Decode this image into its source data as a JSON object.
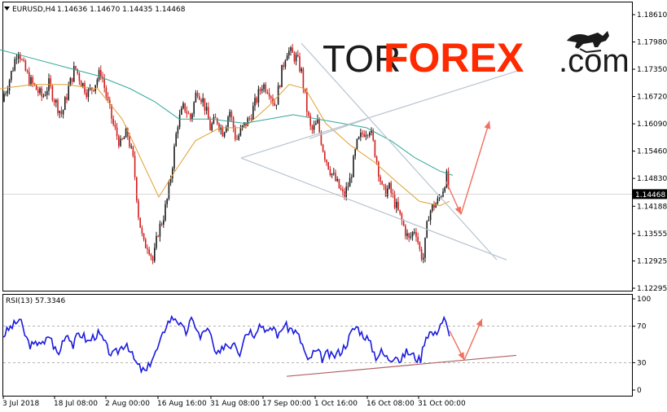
{
  "chart_data": {
    "type": "candlestick",
    "main": {
      "symbol_label": "EURUSD,H4",
      "ohlc_label": [
        "1.14636",
        "1.14670",
        "1.14435",
        "1.14468"
      ],
      "last_price": "1.14468",
      "y_ticks": [
        "1.18610",
        "1.17980",
        "1.17350",
        "1.16720",
        "1.16090",
        "1.15460",
        "1.14830",
        "1.14188",
        "1.13555",
        "1.12925",
        "1.12295"
      ],
      "ylim": [
        1.12295,
        1.1861
      ],
      "x_ticks": [
        "3 Jul 2018",
        "18 Jul 08:00",
        "2 Aug 00:00",
        "16 Aug 16:00",
        "31 Aug 08:00",
        "17 Sep 00:00",
        "1 Oct 16:00",
        "16 Oct 08:00",
        "31 Oct 00:00"
      ],
      "price_path": [
        [
          0,
          1.166
        ],
        [
          8,
          1.169
        ],
        [
          16,
          1.174
        ],
        [
          22,
          1.1785
        ],
        [
          28,
          1.1745
        ],
        [
          36,
          1.171
        ],
        [
          44,
          1.169
        ],
        [
          52,
          1.167
        ],
        [
          60,
          1.17
        ],
        [
          68,
          1.166
        ],
        [
          76,
          1.163
        ],
        [
          84,
          1.169
        ],
        [
          92,
          1.174
        ],
        [
          100,
          1.1705
        ],
        [
          108,
          1.168
        ],
        [
          116,
          1.17
        ],
        [
          124,
          1.173
        ],
        [
          132,
          1.166
        ],
        [
          140,
          1.16
        ],
        [
          148,
          1.156
        ],
        [
          156,
          1.159
        ],
        [
          164,
          1.152
        ],
        [
          170,
          1.14
        ],
        [
          176,
          1.133
        ],
        [
          182,
          1.133
        ],
        [
          188,
          1.129
        ],
        [
          194,
          1.136
        ],
        [
          200,
          1.139
        ],
        [
          206,
          1.144
        ],
        [
          212,
          1.152
        ],
        [
          218,
          1.161
        ],
        [
          226,
          1.165
        ],
        [
          234,
          1.162
        ],
        [
          242,
          1.169
        ],
        [
          250,
          1.166
        ],
        [
          258,
          1.16
        ],
        [
          266,
          1.162
        ],
        [
          274,
          1.159
        ],
        [
          282,
          1.164
        ],
        [
          290,
          1.157
        ],
        [
          298,
          1.16
        ],
        [
          306,
          1.162
        ],
        [
          314,
          1.166
        ],
        [
          322,
          1.17
        ],
        [
          330,
          1.169
        ],
        [
          338,
          1.165
        ],
        [
          346,
          1.173
        ],
        [
          352,
          1.178
        ],
        [
          358,
          1.177
        ],
        [
          364,
          1.176
        ],
        [
          370,
          1.173
        ],
        [
          376,
          1.165
        ],
        [
          382,
          1.159
        ],
        [
          390,
          1.161
        ],
        [
          398,
          1.154
        ],
        [
          406,
          1.15
        ],
        [
          414,
          1.147
        ],
        [
          422,
          1.144
        ],
        [
          430,
          1.148
        ],
        [
          438,
          1.156
        ],
        [
          446,
          1.159
        ],
        [
          454,
          1.16
        ],
        [
          462,
          1.153
        ],
        [
          470,
          1.145
        ],
        [
          478,
          1.146
        ],
        [
          486,
          1.142
        ],
        [
          494,
          1.138
        ],
        [
          502,
          1.134
        ],
        [
          510,
          1.137
        ],
        [
          516,
          1.131
        ],
        [
          520,
          1.13
        ],
        [
          526,
          1.14
        ],
        [
          532,
          1.142
        ],
        [
          538,
          1.143
        ],
        [
          544,
          1.146
        ],
        [
          548,
          1.149
        ],
        [
          552,
          1.1447
        ]
      ],
      "ma_orange": [
        [
          0,
          1.169
        ],
        [
          40,
          1.17
        ],
        [
          80,
          1.17
        ],
        [
          120,
          1.169
        ],
        [
          150,
          1.162
        ],
        [
          175,
          1.152
        ],
        [
          195,
          1.144
        ],
        [
          215,
          1.15
        ],
        [
          240,
          1.157
        ],
        [
          270,
          1.16
        ],
        [
          300,
          1.16
        ],
        [
          330,
          1.165
        ],
        [
          355,
          1.17
        ],
        [
          375,
          1.169
        ],
        [
          400,
          1.161
        ],
        [
          430,
          1.156
        ],
        [
          460,
          1.152
        ],
        [
          490,
          1.147
        ],
        [
          515,
          1.143
        ],
        [
          540,
          1.142
        ],
        [
          552,
          1.143
        ]
      ],
      "ma_teal": [
        [
          0,
          1.178
        ],
        [
          40,
          1.176
        ],
        [
          80,
          1.174
        ],
        [
          120,
          1.172
        ],
        [
          160,
          1.169
        ],
        [
          190,
          1.166
        ],
        [
          220,
          1.162
        ],
        [
          260,
          1.162
        ],
        [
          300,
          1.161
        ],
        [
          330,
          1.162
        ],
        [
          360,
          1.163
        ],
        [
          390,
          1.162
        ],
        [
          420,
          1.161
        ],
        [
          450,
          1.16
        ],
        [
          480,
          1.157
        ],
        [
          510,
          1.153
        ],
        [
          540,
          1.15
        ],
        [
          556,
          1.149
        ]
      ],
      "trendlines": [
        {
          "from": [
            296,
            1.153
          ],
          "to": [
            642,
            1.1735
          ],
          "color": "#b7c4d0"
        },
        {
          "from": [
            296,
            1.153
          ],
          "to": [
            622,
            1.1295
          ],
          "color": "#b7c4d0"
        },
        {
          "from": [
            370,
            1.1795
          ],
          "to": [
            610,
            1.1295
          ],
          "color": "#b7c4d0"
        },
        {
          "from": [
            380,
            1.1575
          ],
          "to": [
            450,
            1.162
          ],
          "color": "#b7c4d0"
        }
      ],
      "arrows": [
        {
          "from": [
            548,
            1.1475
          ],
          "to": [
            566,
            1.14
          ],
          "color": "#f07060"
        },
        {
          "from": [
            566,
            1.14
          ],
          "to": [
            601,
            1.1615
          ],
          "color": "#f07060"
        }
      ]
    },
    "rsi": {
      "label": "RSI(13) 57.3346",
      "y_ticks": [
        "100",
        "70",
        "30",
        "0"
      ],
      "ylim": [
        0,
        100
      ],
      "levels": [
        70,
        30
      ],
      "values_path": [
        [
          0,
          55
        ],
        [
          6,
          62
        ],
        [
          12,
          68
        ],
        [
          18,
          72
        ],
        [
          24,
          78
        ],
        [
          30,
          62
        ],
        [
          36,
          50
        ],
        [
          42,
          48
        ],
        [
          48,
          55
        ],
        [
          54,
          48
        ],
        [
          60,
          62
        ],
        [
          66,
          48
        ],
        [
          72,
          38
        ],
        [
          78,
          58
        ],
        [
          84,
          62
        ],
        [
          90,
          48
        ],
        [
          96,
          62
        ],
        [
          102,
          60
        ],
        [
          108,
          52
        ],
        [
          114,
          58
        ],
        [
          120,
          62
        ],
        [
          126,
          56
        ],
        [
          132,
          45
        ],
        [
          138,
          38
        ],
        [
          144,
          42
        ],
        [
          150,
          48
        ],
        [
          156,
          52
        ],
        [
          162,
          38
        ],
        [
          168,
          28
        ],
        [
          174,
          22
        ],
        [
          180,
          20
        ],
        [
          186,
          34
        ],
        [
          192,
          42
        ],
        [
          198,
          55
        ],
        [
          204,
          72
        ],
        [
          210,
          78
        ],
        [
          216,
          80
        ],
        [
          222,
          70
        ],
        [
          228,
          62
        ],
        [
          234,
          76
        ],
        [
          240,
          72
        ],
        [
          246,
          56
        ],
        [
          252,
          68
        ],
        [
          258,
          62
        ],
        [
          264,
          40
        ],
        [
          270,
          38
        ],
        [
          276,
          52
        ],
        [
          282,
          48
        ],
        [
          288,
          55
        ],
        [
          294,
          40
        ],
        [
          300,
          60
        ],
        [
          306,
          66
        ],
        [
          312,
          62
        ],
        [
          318,
          72
        ],
        [
          324,
          70
        ],
        [
          330,
          62
        ],
        [
          336,
          70
        ],
        [
          342,
          58
        ],
        [
          348,
          72
        ],
        [
          354,
          68
        ],
        [
          360,
          66
        ],
        [
          366,
          60
        ],
        [
          372,
          48
        ],
        [
          378,
          30
        ],
        [
          384,
          40
        ],
        [
          390,
          42
        ],
        [
          396,
          34
        ],
        [
          402,
          40
        ],
        [
          408,
          36
        ],
        [
          414,
          40
        ],
        [
          420,
          44
        ],
        [
          426,
          52
        ],
        [
          432,
          64
        ],
        [
          438,
          70
        ],
        [
          444,
          62
        ],
        [
          450,
          58
        ],
        [
          456,
          48
        ],
        [
          462,
          36
        ],
        [
          468,
          42
        ],
        [
          474,
          36
        ],
        [
          480,
          34
        ],
        [
          486,
          40
        ],
        [
          492,
          30
        ],
        [
          498,
          42
        ],
        [
          504,
          40
        ],
        [
          510,
          36
        ],
        [
          516,
          32
        ],
        [
          522,
          58
        ],
        [
          528,
          64
        ],
        [
          534,
          60
        ],
        [
          540,
          72
        ],
        [
          546,
          78
        ],
        [
          552,
          57
        ]
      ],
      "trendlines": [
        {
          "from": [
            352,
            15
          ],
          "to": [
            634,
            38
          ],
          "color": "#b06060"
        }
      ],
      "arrows": [
        {
          "from": [
            552,
            65
          ],
          "to": [
            570,
            33
          ],
          "color": "#f07060"
        },
        {
          "from": [
            570,
            33
          ],
          "to": [
            592,
            78
          ],
          "color": "#f07060"
        }
      ]
    }
  },
  "logo": {
    "tor": "TOR",
    "forex": "FOREX",
    "com": ".com"
  },
  "colors": {
    "bull": "#1b1b1b",
    "bear": "#d21f1f",
    "ma_orange": "#e0a030",
    "ma_teal": "#30a898",
    "rsi_line": "#1a1ae0",
    "grid": "#9a9a9a"
  }
}
